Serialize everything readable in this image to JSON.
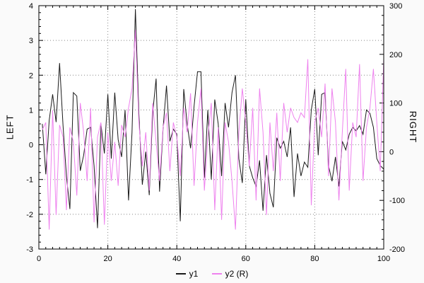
{
  "figure": {
    "background": "#fafafa",
    "plot_background": "#ffffff",
    "frame_color": "#000000",
    "grid_color": "#888888"
  },
  "chart_data": {
    "type": "line",
    "title": "",
    "grid": true,
    "legend_position": "bottom",
    "x_start": 1,
    "x_step": 1,
    "x_axis": {
      "label": "",
      "min": 0,
      "max": 100,
      "ticks": [
        0,
        20,
        40,
        60,
        80,
        100
      ],
      "minor_step": 2
    },
    "left_axis": {
      "label": "LEFT",
      "min": -3,
      "max": 4,
      "ticks": [
        -3,
        -2,
        -1,
        0,
        1,
        2,
        3,
        4
      ],
      "minor_step": 0.2
    },
    "right_axis": {
      "label": "RIGHT",
      "min": -200,
      "max": 300,
      "ticks": [
        -200,
        -100,
        0,
        100,
        200,
        300
      ],
      "minor_step": 20
    },
    "series": [
      {
        "name": "y1",
        "axis": "left",
        "color": "#1a1a1a",
        "values": [
          0.6,
          -0.85,
          0.7,
          1.45,
          0.65,
          2.35,
          0.55,
          -0.9,
          -1.85,
          1.5,
          1.4,
          -0.75,
          -0.3,
          0.45,
          0.5,
          -0.6,
          -2.4,
          0.6,
          -0.25,
          1.45,
          -0.4,
          1.5,
          0.15,
          -0.35,
          1.0,
          -1.6,
          0.35,
          3.9,
          0.9,
          -1.15,
          -0.2,
          -1.45,
          0.9,
          1.9,
          -1.35,
          0.45,
          1.7,
          0.1,
          0.45,
          0.3,
          -2.2,
          1.6,
          0.6,
          -0.1,
          1.1,
          2.1,
          2.1,
          -0.95,
          1.0,
          -1.0,
          1.3,
          0.6,
          -0.9,
          1.2,
          0.5,
          1.5,
          2.0,
          -0.4,
          -1.1,
          1.3,
          -0.6,
          -0.95,
          -1.2,
          -0.45,
          -1.9,
          -0.3,
          -1.4,
          -1.8,
          0.2,
          -0.1,
          0.1,
          -0.35,
          0.5,
          -1.5,
          -0.25,
          -0.9,
          -0.5,
          -0.65,
          1.0,
          1.6,
          -0.3,
          1.45,
          1.5,
          -0.6,
          -1.05,
          -0.35,
          -1.2,
          0.1,
          -0.15,
          0.3,
          0.5,
          0.4,
          0.55,
          0.3,
          1.0,
          0.9,
          0.5,
          -0.4,
          -0.6,
          -0.7
        ]
      },
      {
        "name": "y2 (R)",
        "axis": "right",
        "color": "#ee82ee",
        "values": [
          45,
          60,
          -160,
          85,
          -130,
          55,
          30,
          -120,
          50,
          20,
          -90,
          100,
          40,
          -60,
          90,
          -145,
          30,
          60,
          -150,
          40,
          -60,
          20,
          -70,
          55,
          30,
          90,
          130,
          250,
          60,
          -30,
          40,
          -80,
          100,
          20,
          -60,
          50,
          80,
          -40,
          60,
          30,
          -50,
          90,
          40,
          120,
          -70,
          60,
          130,
          -80,
          30,
          100,
          -120,
          50,
          -140,
          60,
          20,
          -60,
          -160,
          40,
          130,
          60,
          -30,
          90,
          -100,
          130,
          40,
          -130,
          60,
          -40,
          80,
          -60,
          100,
          40,
          90,
          70,
          60,
          80,
          70,
          190,
          -110,
          60,
          90,
          30,
          140,
          -50,
          130,
          60,
          -100,
          40,
          170,
          -80,
          60,
          30,
          180,
          -60,
          50,
          90,
          170,
          60,
          -40,
          190
        ]
      }
    ]
  },
  "legend": {
    "items": [
      {
        "label": "y1",
        "color": "#1a1a1a"
      },
      {
        "label": "y2 (R)",
        "color": "#ee82ee"
      }
    ]
  }
}
